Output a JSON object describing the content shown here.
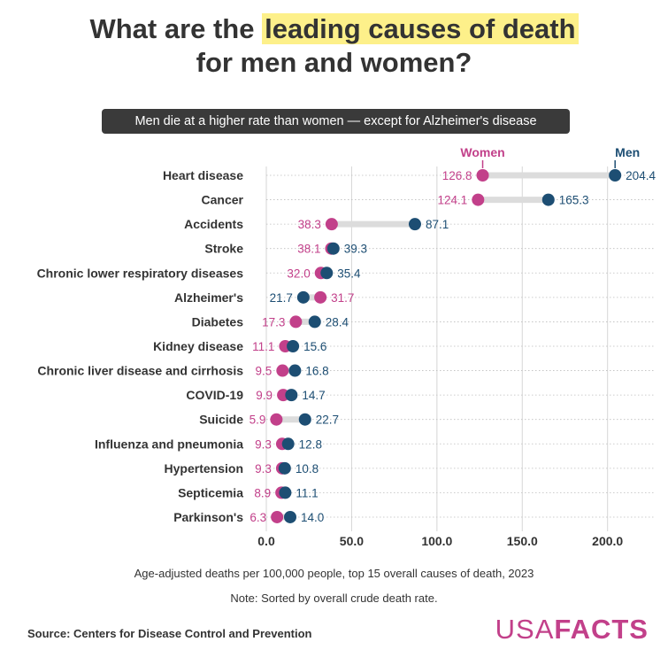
{
  "title": {
    "line1_plain": "What are the ",
    "line1_highlight": "leading causes of death",
    "line2": "for men and women?"
  },
  "subtitle": "Men die at a higher rate than women — except for Alzheimer's disease",
  "chart_data": {
    "type": "dumbbell",
    "categories": [
      "Heart disease",
      "Cancer",
      "Accidents",
      "Stroke",
      "Chronic lower respiratory diseases",
      "Alzheimer's",
      "Diabetes",
      "Kidney disease",
      "Chronic liver disease and cirrhosis",
      "COVID-19",
      "Suicide",
      "Influenza and pneumonia",
      "Hypertension",
      "Septicemia",
      "Parkinson's"
    ],
    "series": [
      {
        "name": "Women",
        "color": "#c2408a",
        "values": [
          126.8,
          124.1,
          38.3,
          38.1,
          32.0,
          31.7,
          17.3,
          11.1,
          9.5,
          9.9,
          5.9,
          9.3,
          9.3,
          8.9,
          6.3
        ],
        "labels": [
          "126.8",
          "124.1",
          "38.3",
          "38.1",
          "32.0",
          "31.7",
          "17.3",
          "11.1",
          "9.5",
          "9.9",
          "5.9",
          "9.3",
          "9.3",
          "8.9",
          "6.3"
        ]
      },
      {
        "name": "Men",
        "color": "#1d4e73",
        "values": [
          204.4,
          165.3,
          87.1,
          39.3,
          35.4,
          21.7,
          28.4,
          15.6,
          16.8,
          14.7,
          22.7,
          12.8,
          10.8,
          11.1,
          14.0
        ],
        "labels": [
          "204.4",
          "165.3",
          "87.1",
          "39.3",
          "35.4",
          "21.7",
          "28.4",
          "15.6",
          "16.8",
          "14.7",
          "22.7",
          "12.8",
          "10.8",
          "11.1",
          "14.0"
        ]
      }
    ],
    "xlim": [
      0,
      225
    ],
    "xticks": [
      0,
      50,
      100,
      150,
      200
    ],
    "xtick_labels": [
      "0.0",
      "50.0",
      "100.0",
      "150.0",
      "200.0"
    ],
    "grid": true,
    "xlabel": "Age-adjusted deaths per 100,000 people, top 15 overall causes of death, 2023",
    "note": "Note: Sorted by overall crude death rate.",
    "legend_placement": "top"
  },
  "source": "Source: Centers for Disease Control and Prevention",
  "logo": {
    "part1": "USA",
    "part2": "FACTS"
  }
}
